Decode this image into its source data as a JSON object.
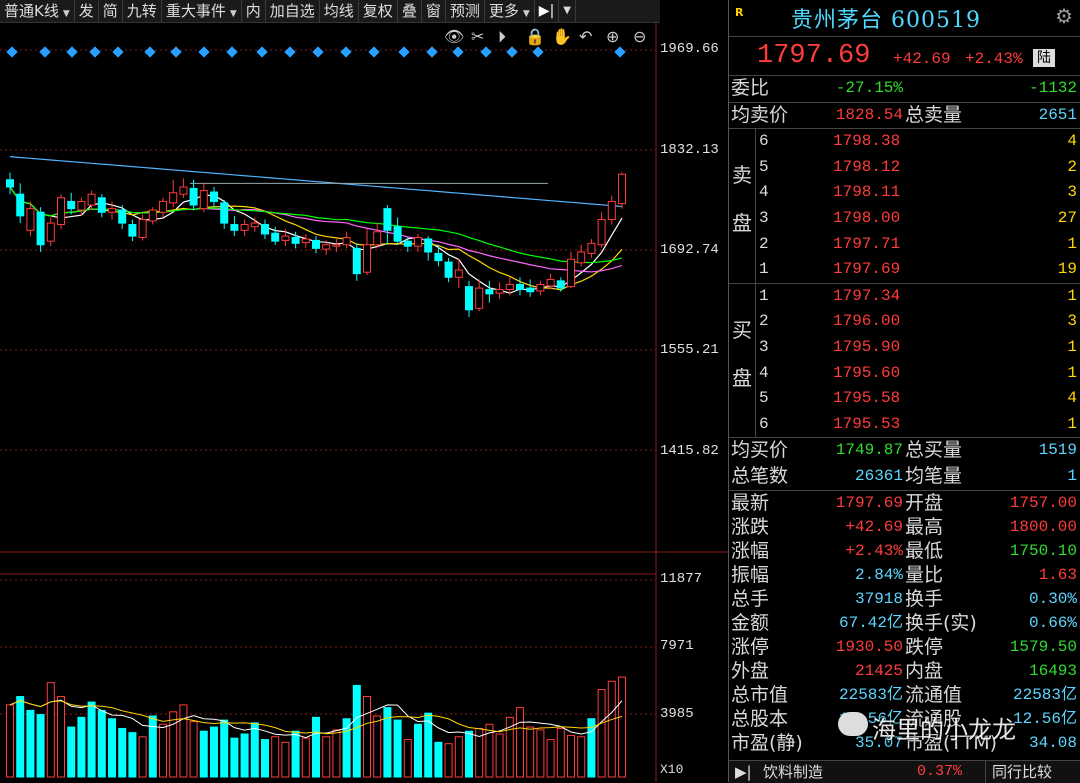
{
  "toolbar": {
    "items": [
      "普通K线",
      "发",
      "简",
      "九转",
      "重大事件",
      "内",
      "加自选",
      "均线",
      "复权",
      "叠",
      "窗",
      "预测",
      "更多"
    ],
    "dropdown_items": [
      0,
      4,
      12
    ],
    "arrow": "▶|"
  },
  "chart_icons": [
    "eye-icon",
    "scissors-icon",
    "play-icon",
    "lock-icon",
    "hand-icon",
    "undo-icon",
    "zoom-in-icon",
    "zoom-out-icon"
  ],
  "price_axis": {
    "labels": [
      "1969.66",
      "1832.13",
      "1692.74",
      "1555.21",
      "1415.82"
    ],
    "range": [
      1350,
      1990
    ]
  },
  "volume_axis": {
    "labels": [
      "11877",
      "7971",
      "3985"
    ],
    "multiplier": "X10",
    "max": 14200
  },
  "chart_data": {
    "type": "candlestick",
    "candles": [
      [
        1790,
        1780,
        1800,
        1770
      ],
      [
        1770,
        1740,
        1785,
        1730
      ],
      [
        1720,
        1750,
        1760,
        1712
      ],
      [
        1745,
        1700,
        1752,
        1690
      ],
      [
        1705,
        1730,
        1738,
        1698
      ],
      [
        1728,
        1765,
        1770,
        1722
      ],
      [
        1760,
        1750,
        1772,
        1742
      ],
      [
        1748,
        1760,
        1765,
        1740
      ],
      [
        1755,
        1770,
        1775,
        1748
      ],
      [
        1765,
        1745,
        1770,
        1738
      ],
      [
        1745,
        1750,
        1760,
        1735
      ],
      [
        1748,
        1730,
        1755,
        1722
      ],
      [
        1728,
        1712,
        1735,
        1705
      ],
      [
        1710,
        1735,
        1742,
        1706
      ],
      [
        1733,
        1748,
        1752,
        1728
      ],
      [
        1745,
        1760,
        1765,
        1738
      ],
      [
        1758,
        1772,
        1790,
        1752
      ],
      [
        1770,
        1780,
        1792,
        1765
      ],
      [
        1778,
        1755,
        1790,
        1748
      ],
      [
        1750,
        1775,
        1785,
        1745
      ],
      [
        1773,
        1760,
        1780,
        1752
      ],
      [
        1758,
        1730,
        1762,
        1722
      ],
      [
        1728,
        1720,
        1740,
        1712
      ],
      [
        1720,
        1728,
        1735,
        1712
      ],
      [
        1725,
        1730,
        1738,
        1718
      ],
      [
        1728,
        1715,
        1735,
        1708
      ],
      [
        1716,
        1705,
        1725,
        1700
      ],
      [
        1706,
        1712,
        1722,
        1698
      ],
      [
        1710,
        1702,
        1718,
        1695
      ],
      [
        1703,
        1708,
        1715,
        1696
      ],
      [
        1706,
        1695,
        1712,
        1688
      ],
      [
        1694,
        1700,
        1706,
        1686
      ],
      [
        1698,
        1700,
        1708,
        1690
      ],
      [
        1700,
        1710,
        1718,
        1695
      ],
      [
        1695,
        1660,
        1702,
        1650
      ],
      [
        1662,
        1700,
        1722,
        1658
      ],
      [
        1700,
        1718,
        1730,
        1695
      ],
      [
        1750,
        1720,
        1755,
        1700
      ],
      [
        1725,
        1705,
        1738,
        1700
      ],
      [
        1705,
        1698,
        1710,
        1690
      ],
      [
        1698,
        1710,
        1715,
        1690
      ],
      [
        1708,
        1690,
        1712,
        1678
      ],
      [
        1688,
        1678,
        1700,
        1670
      ],
      [
        1676,
        1655,
        1682,
        1648
      ],
      [
        1655,
        1665,
        1680,
        1640
      ],
      [
        1642,
        1610,
        1650,
        1600
      ],
      [
        1612,
        1640,
        1652,
        1608
      ],
      [
        1638,
        1632,
        1650,
        1620
      ],
      [
        1633,
        1638,
        1648,
        1625
      ],
      [
        1638,
        1645,
        1655,
        1630
      ],
      [
        1645,
        1638,
        1655,
        1630
      ],
      [
        1640,
        1635,
        1652,
        1628
      ],
      [
        1636,
        1645,
        1650,
        1630
      ],
      [
        1643,
        1652,
        1660,
        1638
      ],
      [
        1650,
        1640,
        1655,
        1635
      ],
      [
        1642,
        1680,
        1690,
        1640
      ],
      [
        1675,
        1690,
        1700,
        1670
      ],
      [
        1688,
        1702,
        1708,
        1682
      ],
      [
        1700,
        1735,
        1745,
        1696
      ],
      [
        1735,
        1760,
        1768,
        1728
      ],
      [
        1757,
        1797.69,
        1800,
        1750.1
      ]
    ],
    "volumes": [
      [
        5200,
        1
      ],
      [
        5800,
        0
      ],
      [
        4800,
        0
      ],
      [
        4500,
        0
      ],
      [
        6800,
        1
      ],
      [
        5800,
        1
      ],
      [
        3600,
        0
      ],
      [
        4300,
        0
      ],
      [
        5400,
        0
      ],
      [
        4800,
        0
      ],
      [
        4200,
        0
      ],
      [
        3500,
        0
      ],
      [
        3200,
        0
      ],
      [
        2900,
        1
      ],
      [
        4400,
        0
      ],
      [
        3800,
        1
      ],
      [
        4700,
        1
      ],
      [
        5200,
        1
      ],
      [
        4000,
        1
      ],
      [
        3300,
        0
      ],
      [
        3600,
        0
      ],
      [
        4100,
        0
      ],
      [
        2800,
        0
      ],
      [
        3100,
        0
      ],
      [
        3900,
        0
      ],
      [
        2700,
        0
      ],
      [
        2900,
        1
      ],
      [
        2500,
        1
      ],
      [
        3300,
        0
      ],
      [
        2800,
        1
      ],
      [
        4300,
        0
      ],
      [
        2900,
        1
      ],
      [
        3400,
        1
      ],
      [
        4200,
        0
      ],
      [
        6600,
        0
      ],
      [
        5800,
        1
      ],
      [
        4400,
        1
      ],
      [
        5000,
        0
      ],
      [
        4100,
        0
      ],
      [
        2700,
        1
      ],
      [
        3800,
        0
      ],
      [
        4600,
        0
      ],
      [
        2500,
        0
      ],
      [
        2400,
        1
      ],
      [
        2900,
        1
      ],
      [
        3300,
        0
      ],
      [
        3500,
        1
      ],
      [
        3800,
        1
      ],
      [
        3100,
        1
      ],
      [
        4300,
        1
      ],
      [
        5000,
        1
      ],
      [
        3600,
        1
      ],
      [
        3400,
        1
      ],
      [
        2700,
        1
      ],
      [
        3500,
        1
      ],
      [
        3000,
        1
      ],
      [
        2900,
        1
      ],
      [
        4200,
        0
      ],
      [
        6300,
        1
      ],
      [
        6900,
        1
      ],
      [
        7200,
        1
      ]
    ]
  },
  "panel": {
    "badge": "R",
    "title": "贵州茅台 600519",
    "last_price": "1797.69",
    "change": "+42.69",
    "change_pct": "+2.43%",
    "market_tag": "陆",
    "weibi_label": "委比",
    "weibi_pct": "-27.15%",
    "weibi_val": "-1132",
    "avg_sell_label": "均卖价",
    "avg_sell": "1828.54",
    "total_sell_label": "总卖量",
    "total_sell": "2651",
    "sell_side_label": [
      "卖",
      "盘"
    ],
    "buy_side_label": [
      "买",
      "盘"
    ],
    "sells": [
      {
        "lv": "6",
        "price": "1798.38",
        "vol": "4"
      },
      {
        "lv": "5",
        "price": "1798.12",
        "vol": "2"
      },
      {
        "lv": "4",
        "price": "1798.11",
        "vol": "3"
      },
      {
        "lv": "3",
        "price": "1798.00",
        "vol": "27"
      },
      {
        "lv": "2",
        "price": "1797.71",
        "vol": "1"
      },
      {
        "lv": "1",
        "price": "1797.69",
        "vol": "19"
      }
    ],
    "buys": [
      {
        "lv": "1",
        "price": "1797.34",
        "vol": "1"
      },
      {
        "lv": "2",
        "price": "1796.00",
        "vol": "3"
      },
      {
        "lv": "3",
        "price": "1795.90",
        "vol": "1"
      },
      {
        "lv": "4",
        "price": "1795.60",
        "vol": "1"
      },
      {
        "lv": "5",
        "price": "1795.58",
        "vol": "4"
      },
      {
        "lv": "6",
        "price": "1795.53",
        "vol": "1"
      }
    ],
    "avg_buy_label": "均买价",
    "avg_buy": "1749.87",
    "total_buy_label": "总买量",
    "total_buy": "1519",
    "trades_label": "总笔数",
    "trades": "26361",
    "avg_trade_label": "均笔量",
    "avg_trade": "1",
    "stats": [
      {
        "l1": "最新",
        "v1": "1797.69",
        "c1": "red",
        "l2": "开盘",
        "v2": "1757.00",
        "c2": "red"
      },
      {
        "l1": "涨跌",
        "v1": "+42.69",
        "c1": "red",
        "l2": "最高",
        "v2": "1800.00",
        "c2": "red"
      },
      {
        "l1": "涨幅",
        "v1": "+2.43%",
        "c1": "red",
        "l2": "最低",
        "v2": "1750.10",
        "c2": "green"
      },
      {
        "l1": "振幅",
        "v1": "2.84%",
        "c1": "cyan",
        "l2": "量比",
        "v2": "1.63",
        "c2": "red"
      },
      {
        "l1": "总手",
        "v1": "37918",
        "c1": "cyan",
        "l2": "换手",
        "v2": "0.30%",
        "c2": "cyan"
      },
      {
        "l1": "金额",
        "v1": "67.42亿",
        "c1": "cyan",
        "l2": "换手(实)",
        "v2": "0.66%",
        "c2": "cyan"
      },
      {
        "l1": "涨停",
        "v1": "1930.50",
        "c1": "red",
        "l2": "跌停",
        "v2": "1579.50",
        "c2": "green"
      },
      {
        "l1": "外盘",
        "v1": "21425",
        "c1": "red",
        "l2": "内盘",
        "v2": "16493",
        "c2": "green"
      },
      {
        "l1": "总市值",
        "v1": "22583亿",
        "c1": "cyan",
        "l2": "流通值",
        "v2": "22583亿",
        "c2": "cyan"
      },
      {
        "l1": "总股本",
        "v1": "12.56亿",
        "c1": "cyan",
        "l2": "流通股",
        "v2": "12.56亿",
        "c2": "cyan"
      },
      {
        "l1": "市盈(静)",
        "v1": "35.07",
        "c1": "cyan",
        "l2": "市盈(TTM)",
        "v2": "34.08",
        "c2": "cyan"
      }
    ],
    "footer_left": "饮料制造",
    "footer_pct": "0.37%",
    "footer_right": "同行比较"
  },
  "watermark": "海里的小龙龙",
  "colors": {
    "up": "#ff3b3b",
    "down": "#00ffff",
    "grid": "#8b1a1a",
    "ma5": "#ffffff",
    "ma10": "#ffd700",
    "ma20": "#ff66ff",
    "ma30": "#00ff00",
    "ma60": "#4fb3ff",
    "diamond": "#28a0ff"
  }
}
